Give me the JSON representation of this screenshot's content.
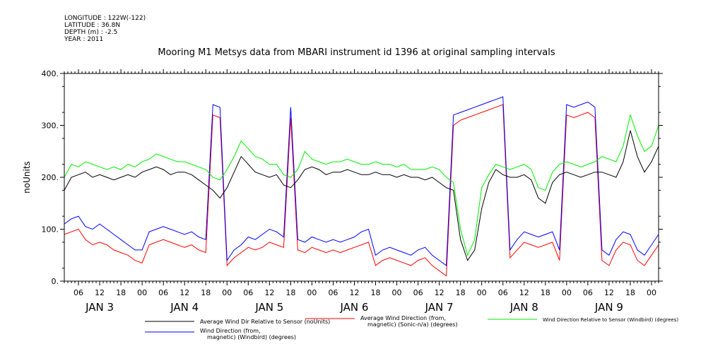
{
  "header": {
    "meta": [
      "LONGITUDE : 122W(-122)",
      "LATITUDE : 36.8N",
      "DEPTH (m) : -2.5",
      "YEAR : 2011"
    ],
    "title": "Mooring M1 Metsys data from MBARI instrument id 1396 at original sampling intervals"
  },
  "chart_data": {
    "type": "line",
    "title": "Mooring M1 Metsys data from MBARI instrument id 1396 at original sampling intervals",
    "ylabel": "noUnits",
    "ylim": [
      0,
      400
    ],
    "yticks": [
      "0.",
      "100.",
      "200.",
      "300.",
      "400."
    ],
    "x_hour_ticks": [
      "06",
      "12",
      "18",
      "00",
      "06",
      "12",
      "18",
      "00",
      "06",
      "12",
      "18",
      "00",
      "06",
      "12",
      "18",
      "00",
      "06",
      "12",
      "18",
      "00",
      "06",
      "12",
      "18",
      "00",
      "06",
      "12",
      "18",
      "00"
    ],
    "x_day_labels": [
      "JAN 3",
      "JAN 4",
      "JAN 5",
      "JAN 6",
      "JAN 7",
      "JAN 8",
      "JAN 9"
    ],
    "xlim_hours": [
      2,
      170
    ],
    "grid": false,
    "legend_placement": "bottom",
    "series": [
      {
        "name": "Average Wind Dir Relative to Sensor (noUnits)",
        "color": "#000000",
        "x": [
          2,
          4,
          6,
          8,
          10,
          12,
          14,
          16,
          18,
          20,
          22,
          24,
          26,
          28,
          30,
          32,
          34,
          36,
          38,
          40,
          42,
          44,
          46,
          48,
          50,
          52,
          54,
          56,
          58,
          60,
          62,
          64,
          66,
          68,
          70,
          72,
          74,
          76,
          78,
          80,
          82,
          84,
          86,
          88,
          90,
          92,
          94,
          96,
          98,
          100,
          102,
          104,
          106,
          108,
          110,
          112,
          114,
          116,
          118,
          120,
          122,
          124,
          126,
          128,
          130,
          132,
          134,
          136,
          138,
          140,
          142,
          144,
          146,
          148,
          150,
          152,
          154,
          156,
          158,
          160,
          162,
          164,
          166,
          168,
          170
        ],
        "values": [
          175,
          200,
          205,
          210,
          200,
          205,
          200,
          195,
          200,
          205,
          200,
          210,
          215,
          220,
          215,
          205,
          210,
          210,
          205,
          195,
          185,
          175,
          160,
          180,
          210,
          240,
          225,
          210,
          205,
          200,
          205,
          185,
          180,
          195,
          215,
          220,
          215,
          205,
          210,
          210,
          215,
          210,
          205,
          205,
          210,
          205,
          205,
          200,
          205,
          200,
          200,
          195,
          200,
          190,
          180,
          175,
          80,
          40,
          60,
          140,
          190,
          215,
          205,
          200,
          200,
          205,
          195,
          160,
          150,
          190,
          205,
          210,
          205,
          200,
          205,
          210,
          210,
          205,
          200,
          230,
          290,
          240,
          210,
          230,
          260
        ]
      },
      {
        "name": "Average Wind Direction (from, magnetic) (Sonic-n/a) (degrees)",
        "color": "#ff0000",
        "x": [
          2,
          4,
          6,
          8,
          10,
          12,
          14,
          16,
          18,
          20,
          22,
          24,
          26,
          28,
          30,
          32,
          34,
          36,
          38,
          40,
          42,
          44,
          46,
          48,
          50,
          52,
          54,
          56,
          58,
          60,
          62,
          64,
          66,
          68,
          70,
          72,
          74,
          76,
          78,
          80,
          82,
          84,
          86,
          88,
          90,
          92,
          94,
          96,
          98,
          100,
          102,
          104,
          106,
          108,
          110,
          112,
          114,
          116,
          118,
          120,
          122,
          124,
          126,
          128,
          130,
          132,
          134,
          136,
          138,
          140,
          142,
          144,
          146,
          148,
          150,
          152,
          154,
          156,
          158,
          160,
          162,
          164,
          166,
          168,
          170
        ],
        "values": [
          90,
          95,
          100,
          80,
          70,
          75,
          70,
          60,
          55,
          50,
          40,
          35,
          70,
          75,
          80,
          75,
          70,
          65,
          70,
          60,
          55,
          320,
          315,
          30,
          45,
          55,
          65,
          60,
          65,
          75,
          70,
          65,
          315,
          60,
          55,
          65,
          60,
          55,
          60,
          55,
          60,
          65,
          70,
          75,
          30,
          40,
          45,
          40,
          35,
          30,
          40,
          45,
          30,
          20,
          10,
          300,
          310,
          315,
          320,
          325,
          330,
          335,
          340,
          45,
          60,
          75,
          70,
          65,
          70,
          75,
          40,
          320,
          315,
          320,
          325,
          315,
          40,
          30,
          60,
          75,
          70,
          40,
          30,
          50,
          70
        ]
      },
      {
        "name": "Wind Direction Relative to Sensor (Windbird) (degrees)",
        "color": "#00ee00",
        "x": [
          2,
          4,
          6,
          8,
          10,
          12,
          14,
          16,
          18,
          20,
          22,
          24,
          26,
          28,
          30,
          32,
          34,
          36,
          38,
          40,
          42,
          44,
          46,
          48,
          50,
          52,
          54,
          56,
          58,
          60,
          62,
          64,
          66,
          68,
          70,
          72,
          74,
          76,
          78,
          80,
          82,
          84,
          86,
          88,
          90,
          92,
          94,
          96,
          98,
          100,
          102,
          104,
          106,
          108,
          110,
          112,
          114,
          116,
          118,
          120,
          122,
          124,
          126,
          128,
          130,
          132,
          134,
          136,
          138,
          140,
          142,
          144,
          146,
          148,
          150,
          152,
          154,
          156,
          158,
          160,
          162,
          164,
          166,
          168,
          170
        ],
        "values": [
          200,
          225,
          220,
          230,
          225,
          220,
          215,
          220,
          215,
          225,
          220,
          230,
          235,
          245,
          240,
          235,
          230,
          230,
          225,
          220,
          215,
          200,
          195,
          215,
          240,
          270,
          255,
          240,
          235,
          225,
          225,
          205,
          200,
          215,
          250,
          235,
          230,
          225,
          230,
          230,
          235,
          230,
          225,
          225,
          230,
          225,
          225,
          220,
          225,
          215,
          215,
          215,
          220,
          215,
          200,
          190,
          100,
          50,
          80,
          180,
          205,
          225,
          220,
          215,
          220,
          225,
          215,
          180,
          175,
          210,
          225,
          230,
          225,
          220,
          225,
          230,
          240,
          235,
          230,
          260,
          320,
          280,
          250,
          260,
          300
        ]
      },
      {
        "name": "Wind Direction (from, magnetic) (Windbird) (degrees)",
        "color": "#0000ff",
        "x": [
          2,
          4,
          6,
          8,
          10,
          12,
          14,
          16,
          18,
          20,
          22,
          24,
          26,
          28,
          30,
          32,
          34,
          36,
          38,
          40,
          42,
          44,
          46,
          48,
          50,
          52,
          54,
          56,
          58,
          60,
          62,
          64,
          66,
          68,
          70,
          72,
          74,
          76,
          78,
          80,
          82,
          84,
          86,
          88,
          90,
          92,
          94,
          96,
          98,
          100,
          102,
          104,
          106,
          108,
          110,
          112,
          114,
          116,
          118,
          120,
          122,
          124,
          126,
          128,
          130,
          132,
          134,
          136,
          138,
          140,
          142,
          144,
          146,
          148,
          150,
          152,
          154,
          156,
          158,
          160,
          162,
          164,
          166,
          168,
          170
        ],
        "values": [
          110,
          120,
          125,
          105,
          100,
          110,
          100,
          90,
          80,
          70,
          60,
          60,
          95,
          100,
          105,
          100,
          95,
          90,
          95,
          85,
          80,
          340,
          335,
          40,
          60,
          70,
          85,
          80,
          90,
          100,
          95,
          85,
          335,
          80,
          75,
          85,
          80,
          75,
          80,
          75,
          80,
          85,
          95,
          100,
          50,
          60,
          65,
          60,
          55,
          50,
          60,
          65,
          50,
          40,
          30,
          320,
          325,
          330,
          335,
          340,
          345,
          350,
          355,
          60,
          80,
          95,
          90,
          85,
          90,
          95,
          60,
          340,
          335,
          340,
          345,
          335,
          60,
          50,
          80,
          95,
          90,
          60,
          50,
          70,
          90
        ]
      }
    ]
  }
}
